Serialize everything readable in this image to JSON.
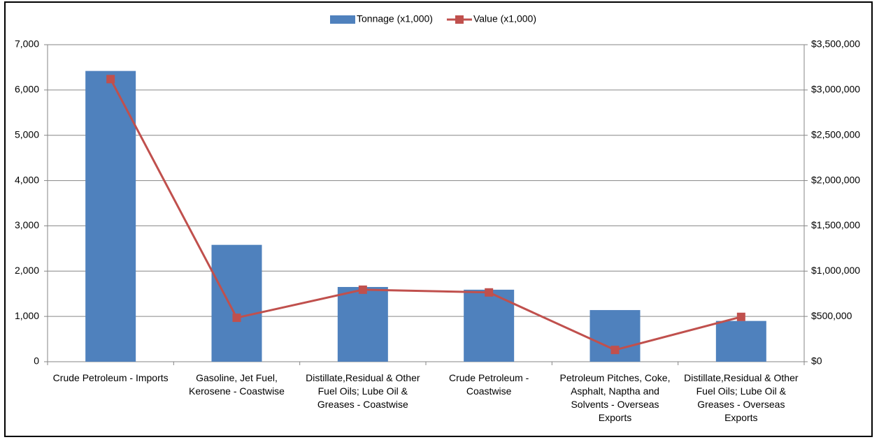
{
  "chart_data": {
    "type": "bar-line",
    "categories": [
      "Crude Petroleum - Imports",
      "Gasoline, Jet Fuel, Kerosene - Coastwise",
      "Distillate,Residual & Other Fuel Oils; Lube Oil & Greases - Coastwise",
      "Crude Petroleum - Coastwise",
      "Petroleum Pitches, Coke, Asphalt, Naptha and Solvents - Overseas Exports",
      "Distillate,Residual & Other Fuel Oils; Lube Oil & Greases - Overseas Exports"
    ],
    "series": [
      {
        "name": "Tonnage (x1,000)",
        "type": "bar",
        "color": "#4f81bd",
        "values": [
          6420,
          2580,
          1650,
          1590,
          1140,
          900
        ]
      },
      {
        "name": "Value (x1,000)",
        "type": "line",
        "axis": "y2",
        "color": "#c0504d",
        "values": [
          3120000,
          485000,
          795000,
          765000,
          130000,
          495000
        ]
      }
    ],
    "ylim": [
      0,
      7000
    ],
    "yticks": [
      0,
      {
        "value": 1000,
        "label": "1,000"
      },
      {
        "value": 2000,
        "label": "2,000"
      },
      {
        "value": 3000,
        "label": "3,000"
      },
      {
        "value": 4000,
        "label": "4,000"
      },
      {
        "value": 5000,
        "label": "5,000"
      },
      {
        "value": 6000,
        "label": "6,000"
      },
      {
        "value": 7000,
        "label": "7,000"
      }
    ],
    "y2lim": [
      0,
      3500000
    ],
    "y2ticks": [
      {
        "value": 0,
        "label": "$0"
      },
      {
        "value": 500000,
        "label": "$500,000"
      },
      {
        "value": 1000000,
        "label": "$1,000,000"
      },
      {
        "value": 1500000,
        "label": "$1,500,000"
      },
      {
        "value": 2000000,
        "label": "$2,000,000"
      },
      {
        "value": 2500000,
        "label": "$2,500,000"
      },
      {
        "value": 3000000,
        "label": "$3,000,000"
      },
      {
        "value": 3500000,
        "label": "$3,500,000"
      }
    ],
    "grid": true,
    "legend": "top"
  }
}
